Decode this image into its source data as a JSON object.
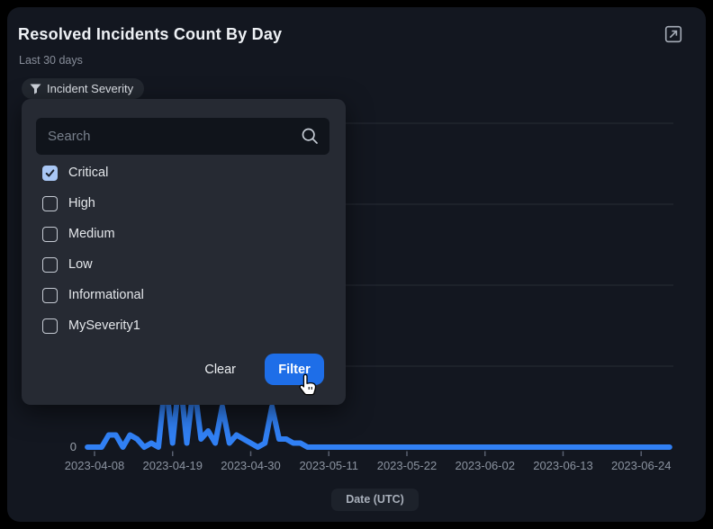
{
  "header": {
    "title": "Resolved Incidents Count By Day",
    "subtitle": "Last 30 days"
  },
  "filter_pill": {
    "label": "Incident Severity"
  },
  "filter_popup": {
    "search": {
      "placeholder": "Search",
      "value": ""
    },
    "options": [
      {
        "label": "Critical",
        "checked": true
      },
      {
        "label": "High",
        "checked": false
      },
      {
        "label": "Medium",
        "checked": false
      },
      {
        "label": "Low",
        "checked": false
      },
      {
        "label": "Informational",
        "checked": false
      },
      {
        "label": "MySeverity1",
        "checked": false
      }
    ],
    "clear_label": "Clear",
    "filter_label": "Filter"
  },
  "chart_axis": {
    "xlabel": "Date (UTC)",
    "y_zero_label": "0"
  },
  "colors": {
    "page_bg": "#000000",
    "card_bg": "#131720",
    "popup_bg": "#262a33",
    "search_bg": "#10141b",
    "accent_blue": "#1e6ee8",
    "line_blue": "#3180f4",
    "checkbox_checked_bg": "#a9c7f5",
    "grid": "#272c35",
    "tick_label": "#8b93a0"
  },
  "chart_data": {
    "type": "line",
    "title": "Resolved Incidents Count By Day",
    "xlabel": "Date (UTC)",
    "x_start": "2023-04-07",
    "x_end": "2023-06-28",
    "x_ticks": [
      "2023-04-08",
      "2023-04-19",
      "2023-04-30",
      "2023-05-11",
      "2023-05-22",
      "2023-06-02",
      "2023-06-13",
      "2023-06-24"
    ],
    "y_visible_tick_label": "0",
    "gridline_values": [
      20,
      40,
      60,
      80
    ],
    "ylim": [
      0,
      84
    ],
    "grid_on": true,
    "line_color": "#3180f4",
    "default_value": 0,
    "values": {
      "2023-04-10": 3,
      "2023-04-11": 3,
      "2023-04-13": 3,
      "2023-04-14": 2,
      "2023-04-16": 1,
      "2023-04-18": 17,
      "2023-04-19": 1,
      "2023-04-20": 18,
      "2023-04-21": 1,
      "2023-04-22": 16,
      "2023-04-23": 2,
      "2023-04-24": 4,
      "2023-04-25": 1,
      "2023-04-26": 10,
      "2023-04-27": 1,
      "2023-04-28": 3,
      "2023-04-29": 2,
      "2023-04-30": 1,
      "2023-05-02": 1,
      "2023-05-03": 10,
      "2023-05-04": 2,
      "2023-05-05": 2,
      "2023-05-06": 1,
      "2023-05-07": 1
    }
  }
}
